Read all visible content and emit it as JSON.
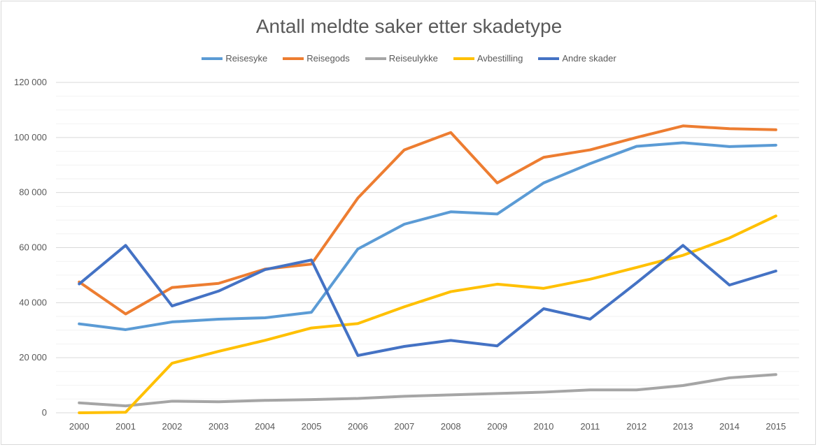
{
  "chart_data": {
    "type": "line",
    "title": "Antall meldte saker etter skadetype",
    "xlabel": "",
    "ylabel": "",
    "ylim": [
      0,
      120000
    ],
    "y_ticks": [
      0,
      20000,
      40000,
      60000,
      80000,
      100000,
      120000
    ],
    "y_tick_labels": [
      "0",
      "20 000",
      "40 000",
      "60 000",
      "80 000",
      "100 000",
      "120 000"
    ],
    "categories": [
      "2000",
      "2001",
      "2002",
      "2003",
      "2004",
      "2005",
      "2006",
      "2007",
      "2008",
      "2009",
      "2010",
      "2011",
      "2012",
      "2013",
      "2014",
      "2015"
    ],
    "grid": true,
    "legend_position": "top",
    "series": [
      {
        "name": "Reisesyke",
        "color": "#5b9bd5",
        "values": [
          32300,
          30200,
          33000,
          34000,
          34500,
          36500,
          59500,
          68500,
          73000,
          72200,
          83500,
          90500,
          96800,
          98100,
          96700,
          97200
        ]
      },
      {
        "name": "Reisegods",
        "color": "#ed7d31",
        "values": [
          47500,
          35900,
          45500,
          47000,
          52200,
          54000,
          78000,
          95500,
          101800,
          83500,
          92800,
          95500,
          100000,
          104200,
          103200,
          102800
        ]
      },
      {
        "name": "Reiseulykke",
        "color": "#a5a5a5",
        "values": [
          3600,
          2500,
          4200,
          4000,
          4500,
          4800,
          5200,
          6000,
          6500,
          7000,
          7500,
          8300,
          8300,
          9900,
          12700,
          13900
        ]
      },
      {
        "name": "Avbestilling",
        "color": "#ffc000",
        "values": [
          0,
          200,
          18000,
          22300,
          26300,
          30800,
          32400,
          38500,
          44000,
          46700,
          45200,
          48500,
          52800,
          57200,
          63500,
          71500
        ]
      },
      {
        "name": "Andre skader",
        "color": "#4472c4",
        "values": [
          46800,
          60800,
          38800,
          44200,
          52000,
          55500,
          20800,
          24100,
          26300,
          24300,
          37800,
          34000,
          47200,
          60800,
          46400,
          51500
        ]
      }
    ]
  }
}
